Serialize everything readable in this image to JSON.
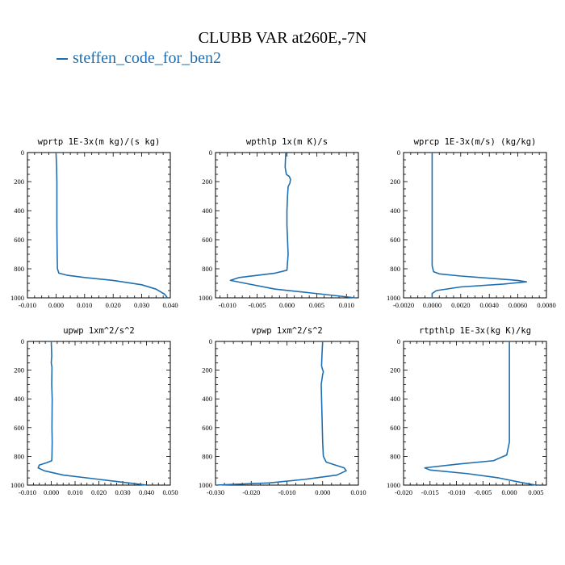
{
  "figure": {
    "title": "CLUBB VAR at260E,-7N",
    "legend_label": "steffen_code_for_ben2",
    "line_color": "#1f6fb0"
  },
  "chart_data": [
    {
      "type": "line",
      "title": "wprtp  1E-3x(m kg)/(s kg)",
      "xlim": [
        -0.01,
        0.04
      ],
      "ylim": [
        1000,
        0
      ],
      "xticks": [
        "-0.010",
        "0.000",
        "0.010",
        "0.020",
        "0.030",
        "0.040"
      ],
      "xtick_values": [
        -0.01,
        0.0,
        0.01,
        0.02,
        0.03,
        0.04
      ],
      "yticks": [
        "0",
        "200",
        "400",
        "600",
        "800",
        "1000"
      ],
      "series": [
        {
          "x": [
            0.0,
            0.0002,
            0.0003,
            0.0003,
            0.0003,
            0.0004,
            0.0005,
            0.001,
            0.004,
            0.01,
            0.02,
            0.03,
            0.035,
            0.038,
            0.039
          ],
          "y": [
            0,
            100,
            200,
            300,
            500,
            700,
            800,
            830,
            845,
            860,
            880,
            910,
            940,
            975,
            1000
          ]
        }
      ]
    },
    {
      "type": "line",
      "title": "wpthlp  1x(m K)/s",
      "xlim": [
        -0.012,
        0.012
      ],
      "ylim": [
        1000,
        0
      ],
      "xticks": [
        "-0.010",
        "-0.005",
        "0.000",
        "0.005",
        "0.010"
      ],
      "xtick_values": [
        -0.01,
        -0.005,
        0.0,
        0.005,
        0.01
      ],
      "yticks": [
        "0",
        "200",
        "400",
        "600",
        "800",
        "1000"
      ],
      "series": [
        {
          "x": [
            -0.0002,
            -0.0003,
            -0.0001,
            0.0004,
            0.0006,
            0.0005,
            0.0002,
            0.0001,
            0.0,
            0.0,
            0.0001,
            0.0002,
            0.0,
            -0.002,
            -0.008,
            -0.0095,
            -0.007,
            -0.002,
            0.006,
            0.0115
          ],
          "y": [
            0,
            100,
            150,
            165,
            185,
            210,
            235,
            300,
            400,
            500,
            600,
            700,
            810,
            830,
            860,
            880,
            900,
            940,
            975,
            1000
          ]
        }
      ]
    },
    {
      "type": "line",
      "title": "wprcp  1E-3x(m/s) (kg/kg)",
      "xlim": [
        -0.002,
        0.008
      ],
      "ylim": [
        1000,
        0
      ],
      "xticks": [
        "-0.0020",
        "0.0000",
        "0.0020",
        "0.0040",
        "0.0060",
        "0.0080"
      ],
      "xtick_values": [
        -0.002,
        0.0,
        0.002,
        0.004,
        0.006,
        0.008
      ],
      "yticks": [
        "0",
        "200",
        "400",
        "600",
        "800",
        "1000"
      ],
      "series": [
        {
          "x": [
            0.0,
            0.0,
            0.0,
            0.0,
            0.0,
            0.0001,
            0.0005,
            0.002,
            0.004,
            0.006,
            0.0066,
            0.005,
            0.002,
            0.0003,
            0.0,
            0.0
          ],
          "y": [
            0,
            200,
            400,
            600,
            780,
            820,
            835,
            850,
            865,
            880,
            890,
            905,
            925,
            950,
            970,
            1000
          ]
        }
      ]
    },
    {
      "type": "line",
      "title": "upwp  1xm^2/s^2",
      "xlim": [
        -0.01,
        0.05
      ],
      "ylim": [
        1000,
        0
      ],
      "xticks": [
        "-0.010",
        "0.000",
        "0.010",
        "0.020",
        "0.030",
        "0.040",
        "0.050"
      ],
      "xtick_values": [
        -0.01,
        0.0,
        0.01,
        0.02,
        0.03,
        0.04,
        0.05
      ],
      "yticks": [
        "0",
        "200",
        "400",
        "600",
        "800",
        "1000"
      ],
      "series": [
        {
          "x": [
            0.0,
            0.0002,
            0.0,
            0.0003,
            0.0002,
            0.0004,
            0.0003,
            0.0004,
            0.0003,
            0.0002,
            -0.002,
            -0.005,
            -0.0055,
            -0.003,
            0.005,
            0.02,
            0.035,
            0.04
          ],
          "y": [
            0,
            100,
            150,
            180,
            300,
            400,
            600,
            700,
            800,
            830,
            845,
            860,
            880,
            900,
            930,
            960,
            990,
            1000
          ]
        }
      ]
    },
    {
      "type": "line",
      "title": "vpwp  1xm^2/s^2",
      "xlim": [
        -0.03,
        0.01
      ],
      "ylim": [
        1000,
        0
      ],
      "xticks": [
        "-0.030",
        "-0.020",
        "-0.010",
        "0.000",
        "0.010"
      ],
      "xtick_values": [
        -0.03,
        -0.02,
        -0.01,
        0.0,
        0.01
      ],
      "yticks": [
        "0",
        "200",
        "400",
        "600",
        "800",
        "1000"
      ],
      "series": [
        {
          "x": [
            0.0,
            -0.0002,
            -0.0003,
            -0.0001,
            0.0002,
            0.0,
            -0.0004,
            -0.0002,
            0.0,
            0.0002,
            0.001,
            0.0035,
            0.006,
            0.0066,
            0.004,
            -0.005,
            -0.015,
            -0.025,
            -0.03
          ],
          "y": [
            0,
            100,
            170,
            190,
            210,
            230,
            300,
            500,
            700,
            800,
            840,
            860,
            880,
            900,
            930,
            960,
            985,
            995,
            1000
          ]
        }
      ]
    },
    {
      "type": "line",
      "title": "rtpthlp  1E-3x(kg K)/kg",
      "xlim": [
        -0.02,
        0.007
      ],
      "ylim": [
        1000,
        0
      ],
      "xticks": [
        "-0.020",
        "-0.015",
        "-0.010",
        "-0.005",
        "0.000",
        "0.005"
      ],
      "xtick_values": [
        -0.02,
        -0.015,
        -0.01,
        -0.005,
        0.0,
        0.005
      ],
      "yticks": [
        "0",
        "200",
        "400",
        "600",
        "800",
        "1000"
      ],
      "series": [
        {
          "x": [
            0.0,
            0.0,
            0.0,
            0.0,
            -0.0005,
            -0.003,
            -0.01,
            -0.016,
            -0.015,
            -0.008,
            -0.002,
            0.002,
            0.005
          ],
          "y": [
            0,
            200,
            400,
            700,
            790,
            830,
            855,
            880,
            895,
            920,
            950,
            980,
            1000
          ]
        }
      ]
    }
  ]
}
